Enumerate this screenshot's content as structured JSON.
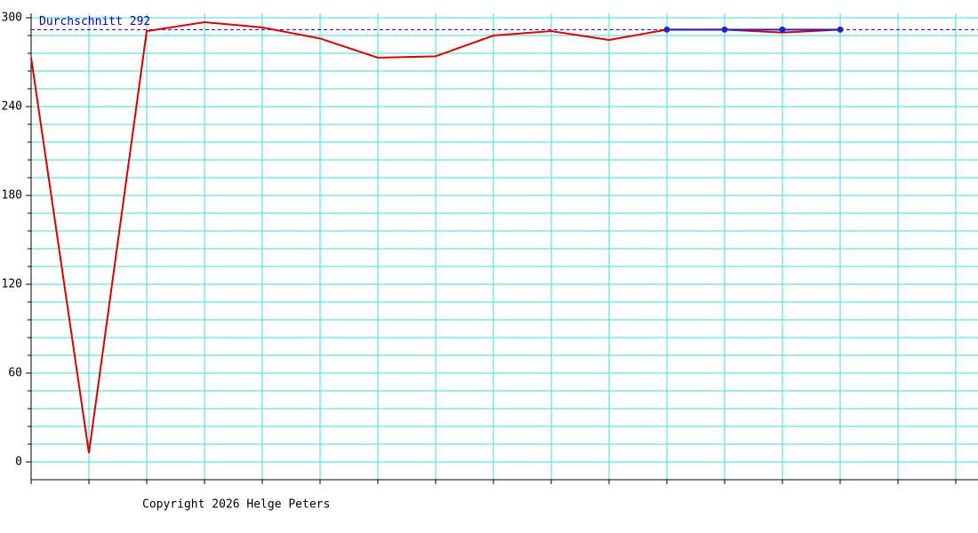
{
  "chart_data": {
    "type": "line",
    "categories": [
      null,
      null,
      null,
      null,
      null,
      null,
      null,
      null,
      null,
      null,
      null,
      null,
      null,
      null,
      null,
      null,
      null
    ],
    "series": [
      {
        "color": "#dd0000",
        "values": [
          273,
          6,
          291,
          297,
          293.5,
          286,
          273,
          274,
          288,
          291,
          285,
          292,
          292,
          290,
          292,
          null,
          null
        ]
      },
      {
        "color": "#2222cc",
        "markers": true,
        "values": [
          null,
          null,
          null,
          null,
          null,
          null,
          null,
          null,
          null,
          null,
          null,
          292,
          292,
          292,
          292,
          null,
          null
        ]
      }
    ],
    "ylim": [
      -12,
      303
    ],
    "yticks": [
      0,
      60,
      120,
      180,
      240,
      300
    ],
    "yminorticks": [
      0,
      12,
      24,
      36,
      48,
      60,
      72,
      84,
      96,
      108,
      120,
      132,
      144,
      156,
      168,
      180,
      192,
      204,
      216,
      228,
      240,
      252,
      264,
      276,
      288,
      300
    ],
    "grid": true,
    "grid_color": "#44dddd",
    "average": {
      "value": 292,
      "label": "Durchschnitt 292",
      "color": "#0000cc"
    },
    "footer": "Copyright 2026 Helge Peters"
  }
}
